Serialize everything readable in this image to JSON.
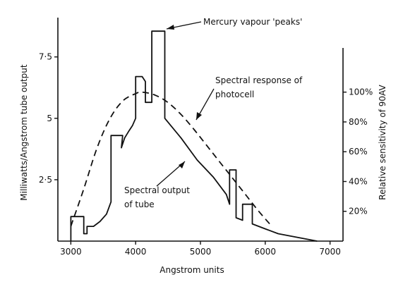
{
  "chart_data": {
    "type": "line",
    "title": "",
    "xlabel": "Angstrom units",
    "ylabel_left": "Milliwatts/Angstrom tube output",
    "ylabel_right": "Relative sensitivity of 90AV",
    "xlim": [
      2800,
      7200
    ],
    "ylim_left": [
      0,
      9.1
    ],
    "ylim_right": [
      0,
      150
    ],
    "x_ticks": [
      {
        "value": 3000,
        "label": "3000"
      },
      {
        "value": 4000,
        "label": "4000"
      },
      {
        "value": 5000,
        "label": "5000"
      },
      {
        "value": 6000,
        "label": "6000"
      },
      {
        "value": 7000,
        "label": "7000"
      }
    ],
    "y_ticks_left": [
      {
        "value": 2.5,
        "label": "2·5"
      },
      {
        "value": 5,
        "label": "5"
      },
      {
        "value": 7.5,
        "label": "7·5"
      }
    ],
    "y_ticks_right": [
      {
        "value": 20,
        "label": "20%"
      },
      {
        "value": 40,
        "label": "40%"
      },
      {
        "value": 60,
        "label": "60%"
      },
      {
        "value": 80,
        "label": "80%"
      },
      {
        "value": 100,
        "label": "100%"
      }
    ],
    "grid": false,
    "legend": "none",
    "series": [
      {
        "axis": "left",
        "style": "solid",
        "points": [
          [
            3000,
            0
          ],
          [
            3000,
            1.0
          ],
          [
            3100,
            1.0
          ],
          [
            3150,
            1.0
          ],
          [
            3200,
            1.0
          ],
          [
            3200,
            0.3
          ],
          [
            3250,
            0.3
          ],
          [
            3250,
            0.6
          ],
          [
            3350,
            0.6
          ],
          [
            3450,
            0.8
          ],
          [
            3550,
            1.1
          ],
          [
            3620,
            1.6
          ],
          [
            3620,
            4.3
          ],
          [
            3800,
            4.3
          ],
          [
            3780,
            3.8
          ],
          [
            3830,
            4.2
          ],
          [
            3900,
            4.5
          ],
          [
            3950,
            4.7
          ],
          [
            4000,
            5.0
          ],
          [
            4000,
            6.7
          ],
          [
            4100,
            6.7
          ],
          [
            4100,
            6.7
          ],
          [
            4150,
            6.5
          ],
          [
            4150,
            5.65
          ],
          [
            4250,
            5.65
          ],
          [
            4250,
            8.55
          ],
          [
            4450,
            8.55
          ],
          [
            4450,
            5.0
          ],
          [
            4700,
            4.2
          ],
          [
            4950,
            3.3
          ],
          [
            5200,
            2.6
          ],
          [
            5400,
            1.9
          ],
          [
            5450,
            1.5
          ],
          [
            5450,
            2.9
          ],
          [
            5550,
            2.9
          ],
          [
            5550,
            0.95
          ],
          [
            5650,
            0.85
          ],
          [
            5650,
            1.5
          ],
          [
            5800,
            1.5
          ],
          [
            5800,
            0.7
          ],
          [
            6000,
            0.5
          ],
          [
            6200,
            0.3
          ],
          [
            6500,
            0.15
          ],
          [
            6800,
            0.0
          ]
        ]
      },
      {
        "axis": "right",
        "style": "dashed",
        "points": [
          [
            3000,
            10
          ],
          [
            3200,
            35
          ],
          [
            3400,
            62
          ],
          [
            3600,
            82
          ],
          [
            3800,
            94
          ],
          [
            4000,
            99
          ],
          [
            4100,
            100
          ],
          [
            4300,
            98
          ],
          [
            4500,
            93
          ],
          [
            4700,
            85
          ],
          [
            4900,
            75
          ],
          [
            5100,
            64
          ],
          [
            5300,
            53
          ],
          [
            5500,
            42
          ],
          [
            5700,
            31
          ],
          [
            5900,
            20
          ],
          [
            6100,
            10
          ]
        ]
      }
    ],
    "annotations": [
      {
        "lines": [
          "Mercury vapour 'peaks'"
        ]
      },
      {
        "lines": [
          "Spectral response of",
          "photocell"
        ]
      },
      {
        "lines": [
          "Spectral output",
          "of tube"
        ]
      }
    ]
  }
}
